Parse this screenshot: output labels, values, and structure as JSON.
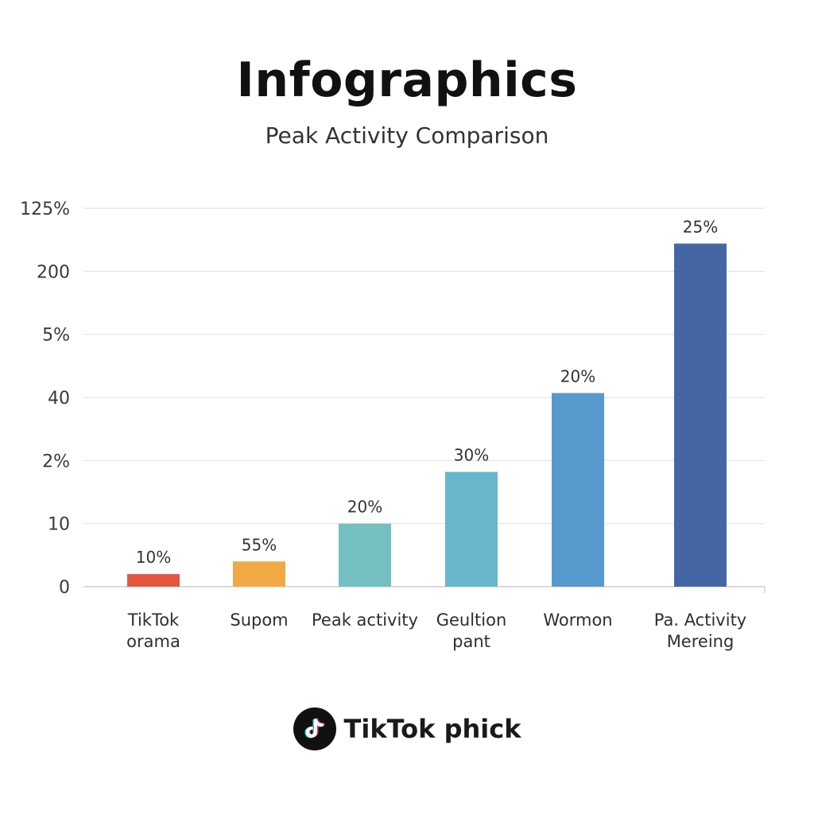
{
  "header": {
    "title": "Infographics",
    "subtitle": "Peak Activity Comparison"
  },
  "chart_data": {
    "type": "bar",
    "title": "Infographics",
    "subtitle": "Peak Activity Comparison",
    "y_tick_labels": [
      "0",
      "10",
      "2%",
      "40",
      "5%",
      "200",
      "125%"
    ],
    "ylim": [
      0,
      6
    ],
    "grid": true,
    "categories": [
      [
        "TikTok",
        "orama"
      ],
      [
        "Supom"
      ],
      [
        "Peak activity"
      ],
      [
        "Geultion",
        "pant"
      ],
      [
        "Wormon"
      ],
      [
        "Pa. Activity",
        "Mereing"
      ]
    ],
    "values": [
      0.2,
      0.4,
      1.0,
      1.82,
      3.07,
      5.44
    ],
    "data_labels": [
      "10%",
      "55%",
      "20%",
      "30%",
      "20%",
      "25%"
    ],
    "colors": [
      "#e4573f",
      "#f2a945",
      "#74c0c1",
      "#68b6cc",
      "#5699cc",
      "#4566a5"
    ]
  },
  "brand": {
    "name": "TikTok phick",
    "logo_icon": "tiktok-note-icon"
  }
}
